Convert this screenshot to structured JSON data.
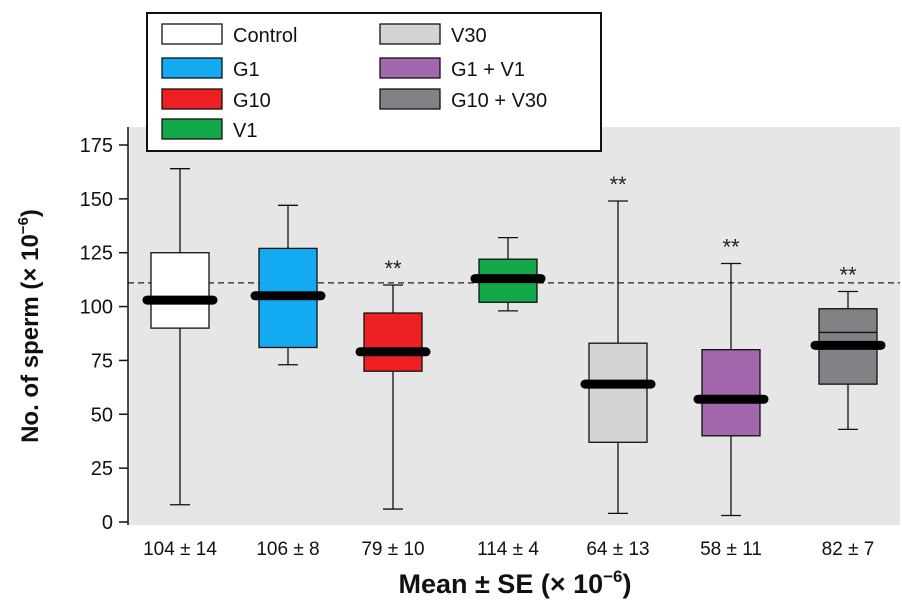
{
  "chart_data": {
    "type": "boxplot",
    "xlabel": "Mean ± SE (× 10",
    "xlabel_exp": "−6",
    "xlabel_close": ")",
    "ylabel": "No. of sperm (× 10",
    "ylabel_exp": "−6",
    "ylabel_close": ")",
    "ylim": [
      0,
      180
    ],
    "yticks": [
      0,
      25,
      50,
      75,
      100,
      125,
      150,
      175
    ],
    "reference_line": 111,
    "grid": false,
    "legend_position": "top-left",
    "series": [
      {
        "name": "Control",
        "label": "104 ± 14",
        "color": "#ffffff",
        "min": 8,
        "q1": 90,
        "median": 103,
        "q3": 125,
        "max": 164,
        "mean": 104,
        "thin_median": null,
        "significance": ""
      },
      {
        "name": "G1",
        "label": "106 ± 8",
        "color": "#12aaf0",
        "min": 73,
        "q1": 81,
        "median": 105,
        "q3": 127,
        "max": 147,
        "mean": 106,
        "thin_median": null,
        "significance": ""
      },
      {
        "name": "G10",
        "label": "79 ± 10",
        "color": "#ee2024",
        "min": 6,
        "q1": 70,
        "median": 79,
        "q3": 97,
        "max": 110,
        "mean": 79,
        "thin_median": null,
        "significance": "**"
      },
      {
        "name": "V1",
        "label": "114 ± 4",
        "color": "#13a84a",
        "min": 98,
        "q1": 102,
        "median": 113,
        "q3": 122,
        "max": 132,
        "mean": 114,
        "thin_median": null,
        "significance": ""
      },
      {
        "name": "V30",
        "label": "64 ± 13",
        "color": "#d4d4d4",
        "min": 4,
        "q1": 37,
        "median": 64,
        "q3": 83,
        "max": 149,
        "mean": 64,
        "thin_median": null,
        "significance": "**"
      },
      {
        "name": "G1 + V1",
        "label": "58 ± 11",
        "color": "#a267ad",
        "min": 3,
        "q1": 40,
        "median": 57,
        "q3": 80,
        "max": 120,
        "mean": 58,
        "thin_median": null,
        "significance": "**"
      },
      {
        "name": "G10 + V30",
        "label": "82 ± 7",
        "color": "#808285",
        "min": 43,
        "q1": 64,
        "median": 82,
        "q3": 99,
        "max": 107,
        "mean": 82,
        "thin_median": 88,
        "significance": "**"
      }
    ]
  }
}
